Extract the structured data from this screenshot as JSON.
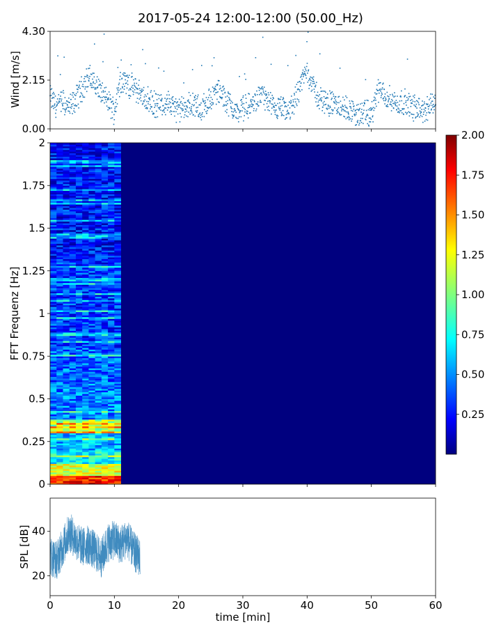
{
  "title": "2017-05-24 12:00-12:00 (50.00_Hz)",
  "chart_data": [
    {
      "id": "wind",
      "type": "scatter",
      "ylabel": "Wind [m/s]",
      "xlabel": "",
      "xlim": [
        0,
        60
      ],
      "ylim": [
        0,
        4.3
      ],
      "yticks": [
        "0.00",
        "2.15",
        "4.30"
      ],
      "grid": false,
      "color": "#1f77b4",
      "series": [
        {
          "x": [
            0,
            1,
            2,
            3,
            4,
            5,
            6,
            7,
            8,
            9,
            10,
            11,
            12,
            13,
            14,
            15,
            16,
            17,
            18,
            19,
            20,
            21,
            22,
            23,
            24,
            25,
            26,
            27,
            28,
            29,
            30,
            31,
            32,
            33,
            34,
            35,
            36,
            37,
            38,
            39,
            40,
            41,
            42,
            43,
            44,
            45,
            46,
            47,
            48,
            49,
            50,
            51,
            52,
            53,
            54,
            55,
            56,
            57,
            58,
            59,
            60
          ],
          "y": [
            1.4,
            1.0,
            1.2,
            0.9,
            1.3,
            1.8,
            2.3,
            2.0,
            1.6,
            1.2,
            0.8,
            2.2,
            2.0,
            1.8,
            1.6,
            1.3,
            1.1,
            1.0,
            1.2,
            1.0,
            0.8,
            0.9,
            1.1,
            0.9,
            1.0,
            1.3,
            1.7,
            1.4,
            1.1,
            0.7,
            0.9,
            1.0,
            1.2,
            1.6,
            1.1,
            0.8,
            0.9,
            0.7,
            1.2,
            2.0,
            2.6,
            1.8,
            1.3,
            1.2,
            1.1,
            1.0,
            0.9,
            0.8,
            0.6,
            0.7,
            0.6,
            1.7,
            1.5,
            1.3,
            1.1,
            1.2,
            1.0,
            0.9,
            0.8,
            0.9,
            1.3
          ]
        }
      ]
    },
    {
      "id": "fft",
      "type": "heatmap",
      "ylabel": "FFT Frequenz [Hz]",
      "xlabel": "",
      "xlim": [
        0,
        60
      ],
      "ylim": [
        0,
        2
      ],
      "yticks": [
        "0",
        "0.25",
        "0.5",
        "0.75",
        "1",
        "1.25",
        "1.5",
        "1.75",
        "2"
      ],
      "data_x_range": [
        0,
        11
      ],
      "colormap": "jet",
      "colorbar": {
        "vmin": 0,
        "vmax": 2,
        "ticks": [
          "0.25",
          "0.50",
          "0.75",
          "1.00",
          "1.25",
          "1.50",
          "1.75",
          "2.00"
        ]
      },
      "background_value": 0
    },
    {
      "id": "spl",
      "type": "line",
      "ylabel": "SPL [dB]",
      "xlabel": "time [min]",
      "xlim": [
        0,
        60
      ],
      "ylim": [
        11,
        55
      ],
      "yticks": [
        "20",
        "40"
      ],
      "xticks": [
        "0",
        "10",
        "20",
        "30",
        "40",
        "50",
        "60"
      ],
      "color": "#1f77b4",
      "series": [
        {
          "x": [
            0,
            1,
            2,
            3,
            4,
            5,
            6,
            7,
            8,
            9,
            10,
            11,
            12,
            13,
            14
          ],
          "y": [
            29,
            27,
            33,
            40,
            36,
            33,
            34,
            31,
            28,
            35,
            36,
            34,
            37,
            31,
            28
          ]
        }
      ]
    }
  ]
}
